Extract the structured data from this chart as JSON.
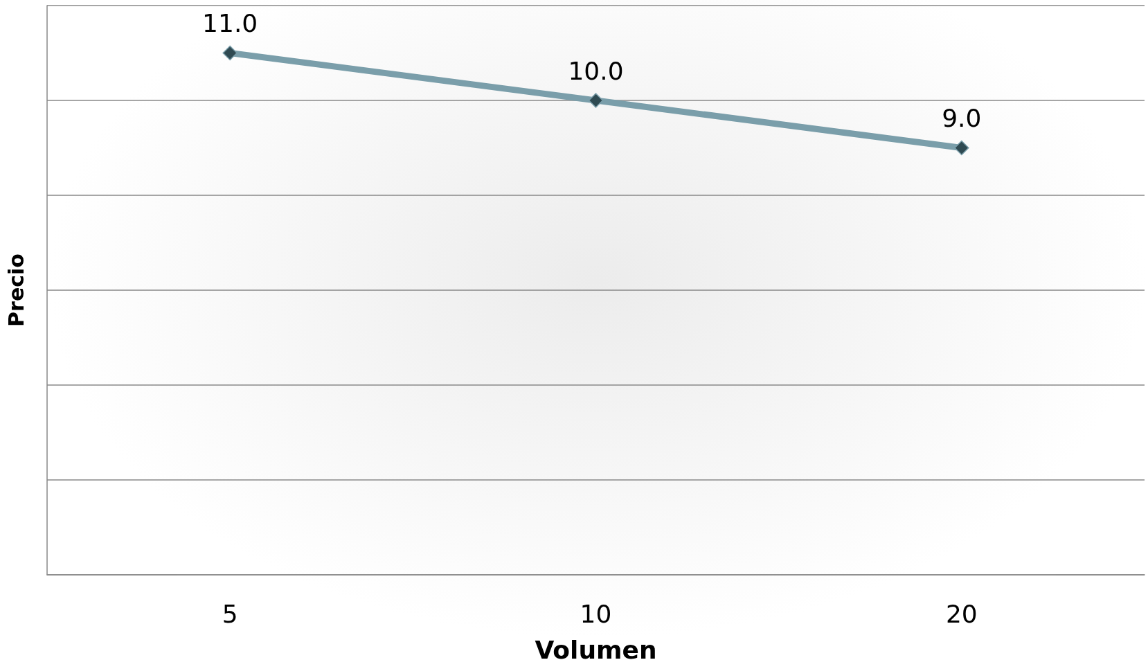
{
  "chart_data": {
    "type": "line",
    "xlabel": "Volumen",
    "ylabel": "Precio",
    "categories": [
      "5",
      "10",
      "20"
    ],
    "series": [
      {
        "color": "#7a9eaa",
        "values": [
          11,
          10,
          9
        ],
        "value_labels": [
          "11.0",
          "10.0",
          "9.0"
        ]
      }
    ],
    "ylim": [
      0,
      12
    ],
    "yticks": [
      {
        "value": 0,
        "label": null
      },
      {
        "value": 2,
        "label": null
      },
      {
        "value": 4,
        "label": null
      },
      {
        "value": 6,
        "label": null
      },
      {
        "value": 8,
        "label": null
      },
      {
        "value": 10,
        "label": null
      },
      {
        "value": 12,
        "label": null
      }
    ],
    "grid": "y",
    "marker": "diamond",
    "line_style": "solid",
    "tick_labels": "x"
  }
}
